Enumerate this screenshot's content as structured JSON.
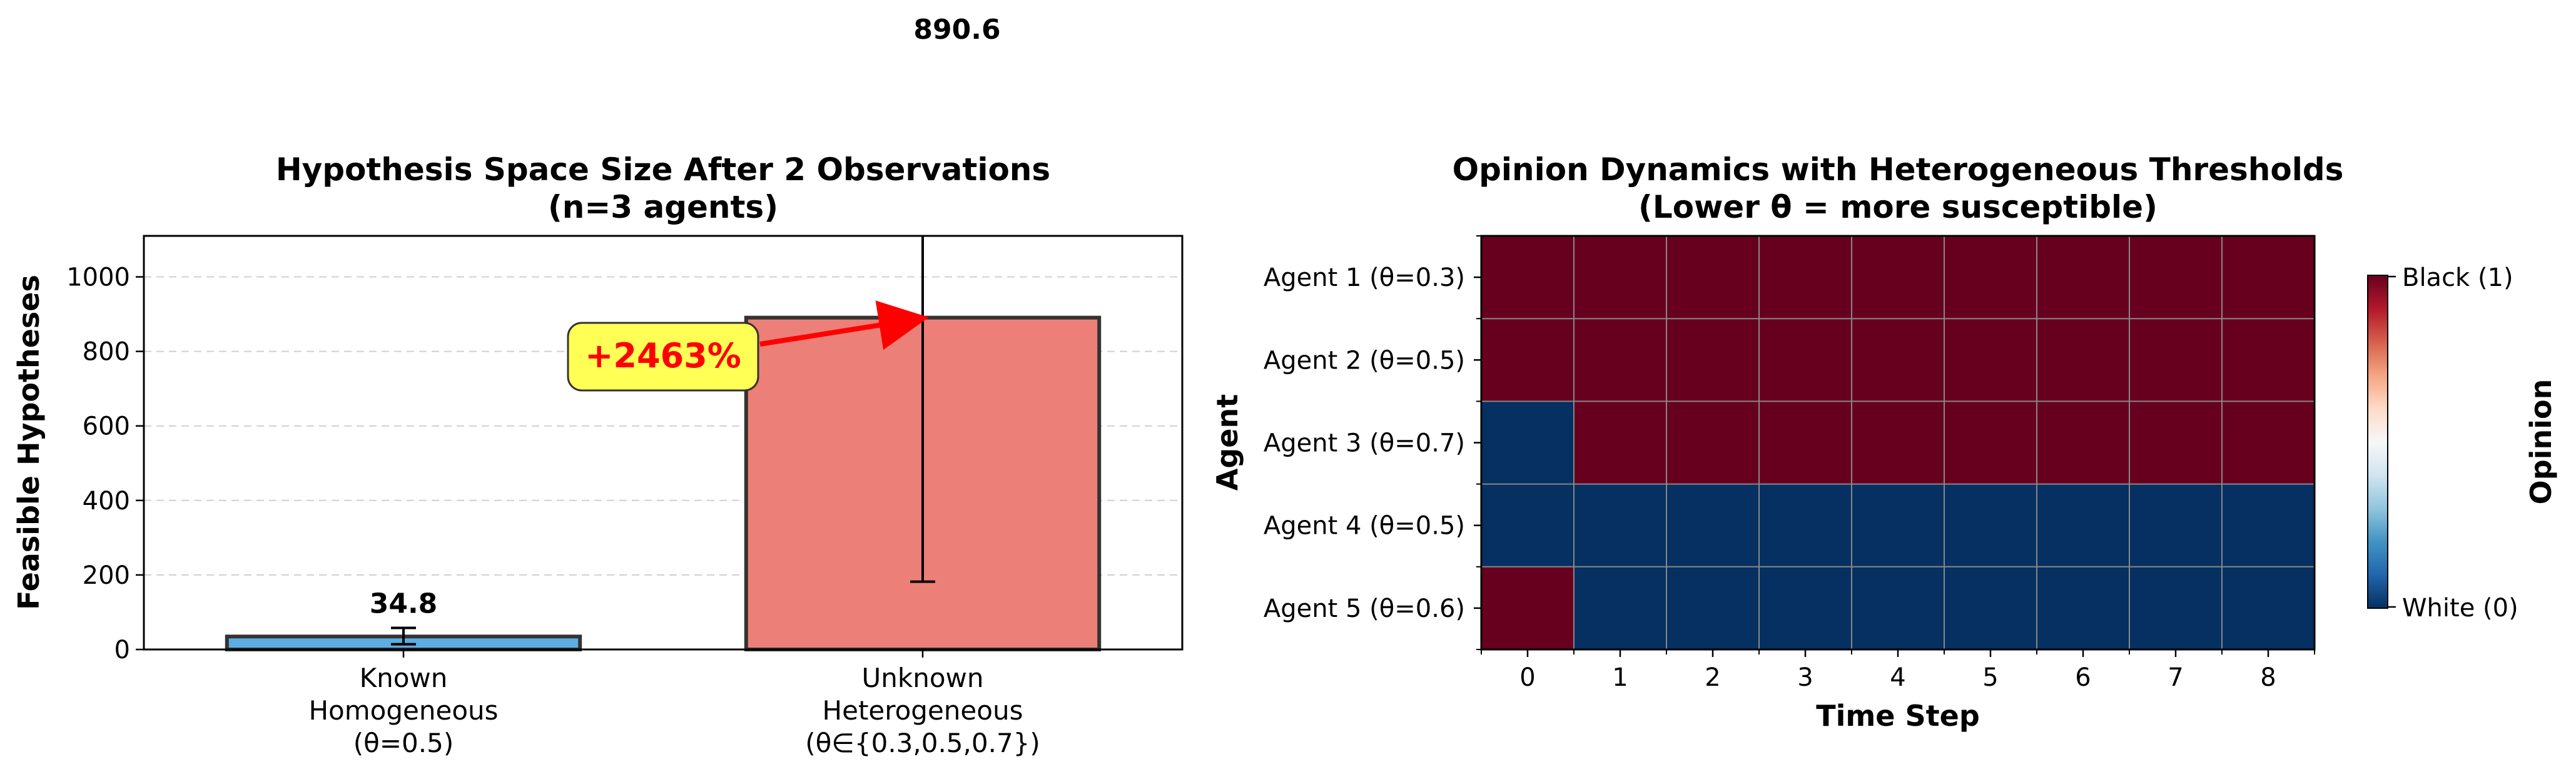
{
  "chart_data": [
    {
      "type": "bar",
      "title": "Hypothesis Space Size After 2 Observations",
      "subtitle": "(n=3 agents)",
      "ylabel": "Feasible Hypotheses",
      "ylim": [
        0,
        1110
      ],
      "yticks": [
        0,
        200,
        400,
        600,
        800,
        1000
      ],
      "grid": "y-dashed",
      "categories": [
        [
          "Known",
          "Homogeneous",
          "(θ=0.5)"
        ],
        [
          "Unknown",
          "Heterogeneous",
          "(θ∈{0.3,0.5,0.7})"
        ]
      ],
      "values": [
        34.8,
        890.6
      ],
      "errors": [
        {
          "low": 14,
          "high": 58
        },
        {
          "low": 182,
          "high": 1110
        }
      ],
      "data_labels": [
        "34.8",
        "890.6"
      ],
      "colors": [
        "#5DADE2",
        "#EC7F77"
      ],
      "edge_color": "#333333",
      "annotation": {
        "text": "+2463%",
        "color": "#FF0000",
        "box": "#FFFF55",
        "arrow_to": {
          "category": 1,
          "y": 890.6
        }
      }
    },
    {
      "type": "heatmap",
      "title": "Opinion Dynamics with Heterogeneous Thresholds",
      "subtitle": "(Lower θ = more susceptible)",
      "xlabel": "Time Step",
      "ylabel": "Agent",
      "x": [
        0,
        1,
        2,
        3,
        4,
        5,
        6,
        7,
        8
      ],
      "rows": [
        "Agent 1 (θ=0.3)",
        "Agent 2 (θ=0.5)",
        "Agent 3 (θ=0.7)",
        "Agent 4 (θ=0.5)",
        "Agent 5 (θ=0.6)"
      ],
      "values": [
        [
          1,
          1,
          1,
          1,
          1,
          1,
          1,
          1,
          1
        ],
        [
          1,
          1,
          1,
          1,
          1,
          1,
          1,
          1,
          1
        ],
        [
          0,
          1,
          1,
          1,
          1,
          1,
          1,
          1,
          1
        ],
        [
          0,
          0,
          0,
          0,
          0,
          0,
          0,
          0,
          0
        ],
        [
          1,
          0,
          0,
          0,
          0,
          0,
          0,
          0,
          0
        ]
      ],
      "colormap": "RdBu_r",
      "colors": {
        "black": "#67001F",
        "white": "#053061"
      },
      "colorbar": {
        "label": "Opinion",
        "ticks": [
          "Black (1)",
          "White (0)"
        ]
      }
    }
  ]
}
